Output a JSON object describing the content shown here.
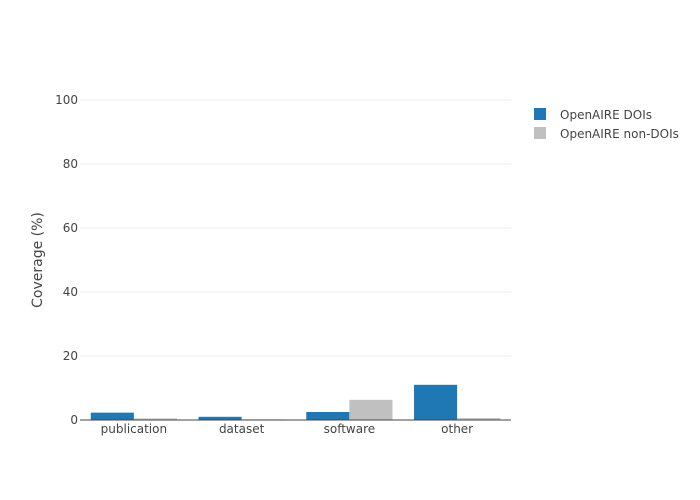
{
  "chart_data": {
    "type": "bar",
    "categories": [
      "publication",
      "dataset",
      "software",
      "other"
    ],
    "series": [
      {
        "name": "OpenAIRE DOIs",
        "color": "#1f77b4",
        "values": [
          2.3,
          1.0,
          2.5,
          11.0
        ]
      },
      {
        "name": "OpenAIRE non-DOIs",
        "color": "#c0c0c0",
        "values": [
          0.5,
          0.2,
          6.3,
          0.6
        ]
      }
    ],
    "title": "",
    "xlabel": "",
    "ylabel": "Coverage (%)",
    "ylim": [
      0,
      100
    ],
    "yticks": [
      0,
      20,
      40,
      60,
      80,
      100
    ],
    "grid": true,
    "legend_position": "top-right"
  }
}
